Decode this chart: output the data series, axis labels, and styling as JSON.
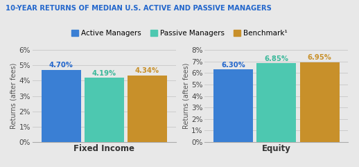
{
  "title": "10-YEAR RETURNS OF MEDIAN U.S. ACTIVE AND PASSIVE MANAGERS",
  "title_color": "#2266cc",
  "background_color": "#e8e8e8",
  "legend_labels": [
    "Active Managers",
    "Passive Managers",
    "Benchmark¹"
  ],
  "bar_colors": [
    "#3a7fd4",
    "#4dc8b0",
    "#c8902a"
  ],
  "categories": [
    "Fixed Income",
    "Equity"
  ],
  "values": {
    "Active Managers": [
      4.7,
      6.3
    ],
    "Passive Managers": [
      4.19,
      6.85
    ],
    "Benchmark": [
      4.34,
      6.95
    ]
  },
  "value_labels": {
    "Fixed Income": [
      "4.70%",
      "4.19%",
      "4.34%"
    ],
    "Equity": [
      "6.30%",
      "6.85%",
      "6.95%"
    ]
  },
  "ylim_left": [
    0,
    6
  ],
  "ylim_right": [
    0,
    8
  ],
  "yticks_left": [
    0,
    1,
    2,
    3,
    4,
    5,
    6
  ],
  "yticks_right": [
    0,
    1,
    2,
    3,
    4,
    5,
    6,
    7,
    8
  ],
  "ylabel": "Returns (after fees)",
  "value_label_colors": [
    "#2266cc",
    "#3ab89a",
    "#c8902a"
  ],
  "bar_width": 0.55,
  "x_positions": [
    0.5,
    1.1,
    1.7
  ]
}
